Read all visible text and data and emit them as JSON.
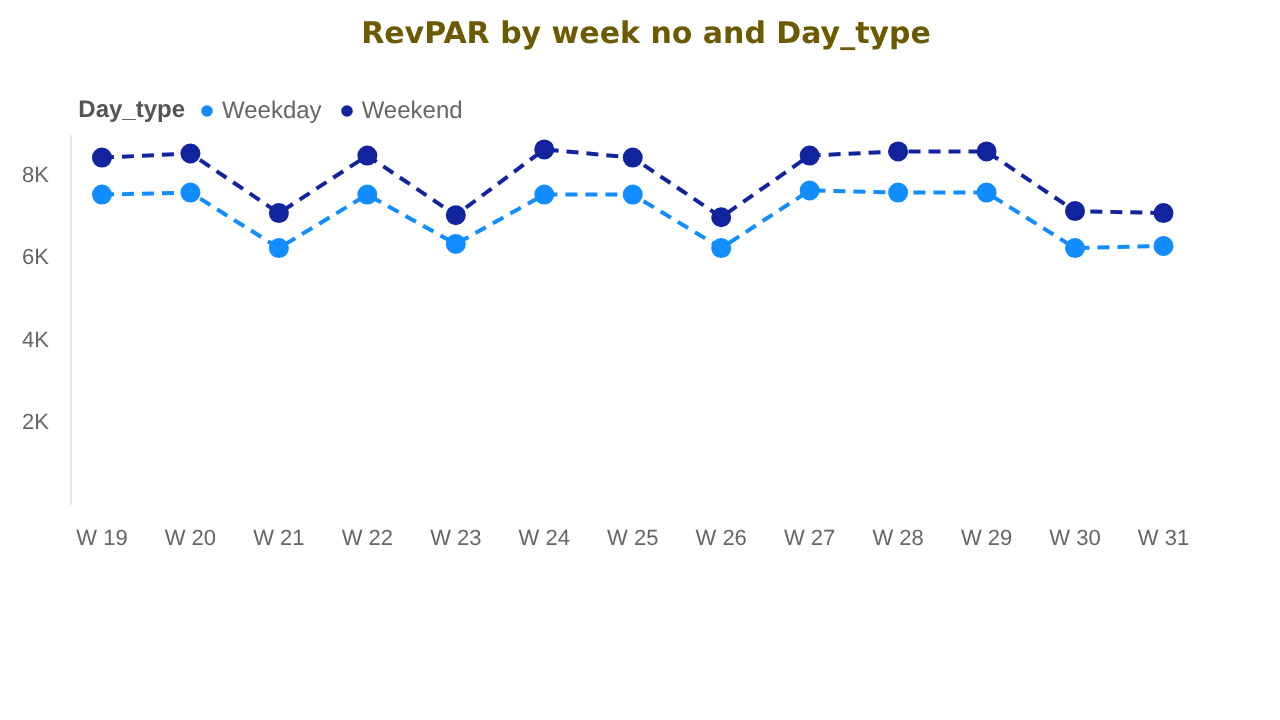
{
  "chart_data": {
    "type": "line",
    "title": "RevPAR by week no and Day_type",
    "legend_title": "Day_type",
    "categories": [
      "W 19",
      "W 20",
      "W 21",
      "W 22",
      "W 23",
      "W 24",
      "W 25",
      "W 26",
      "W 27",
      "W 28",
      "W 29",
      "W 30",
      "W 31"
    ],
    "series": [
      {
        "name": "Weekday",
        "color": "#118dff",
        "values": [
          7550,
          7600,
          6250,
          7550,
          6350,
          7550,
          7550,
          6250,
          7650,
          7600,
          7600,
          6250,
          6300
        ]
      },
      {
        "name": "Weekend",
        "color": "#12239e",
        "values": [
          8450,
          8550,
          7100,
          8500,
          7050,
          8650,
          8450,
          7000,
          8500,
          8600,
          8600,
          7150,
          7100
        ]
      }
    ],
    "ylim": [
      0,
      9000
    ],
    "yticks": [
      {
        "value": 2000,
        "label": "2K"
      },
      {
        "value": 4000,
        "label": "4K"
      },
      {
        "value": 6000,
        "label": "6K"
      },
      {
        "value": 8000,
        "label": "8K"
      }
    ],
    "grid": false,
    "legend": "top left",
    "marker": "circle",
    "line_style": "dashed"
  }
}
